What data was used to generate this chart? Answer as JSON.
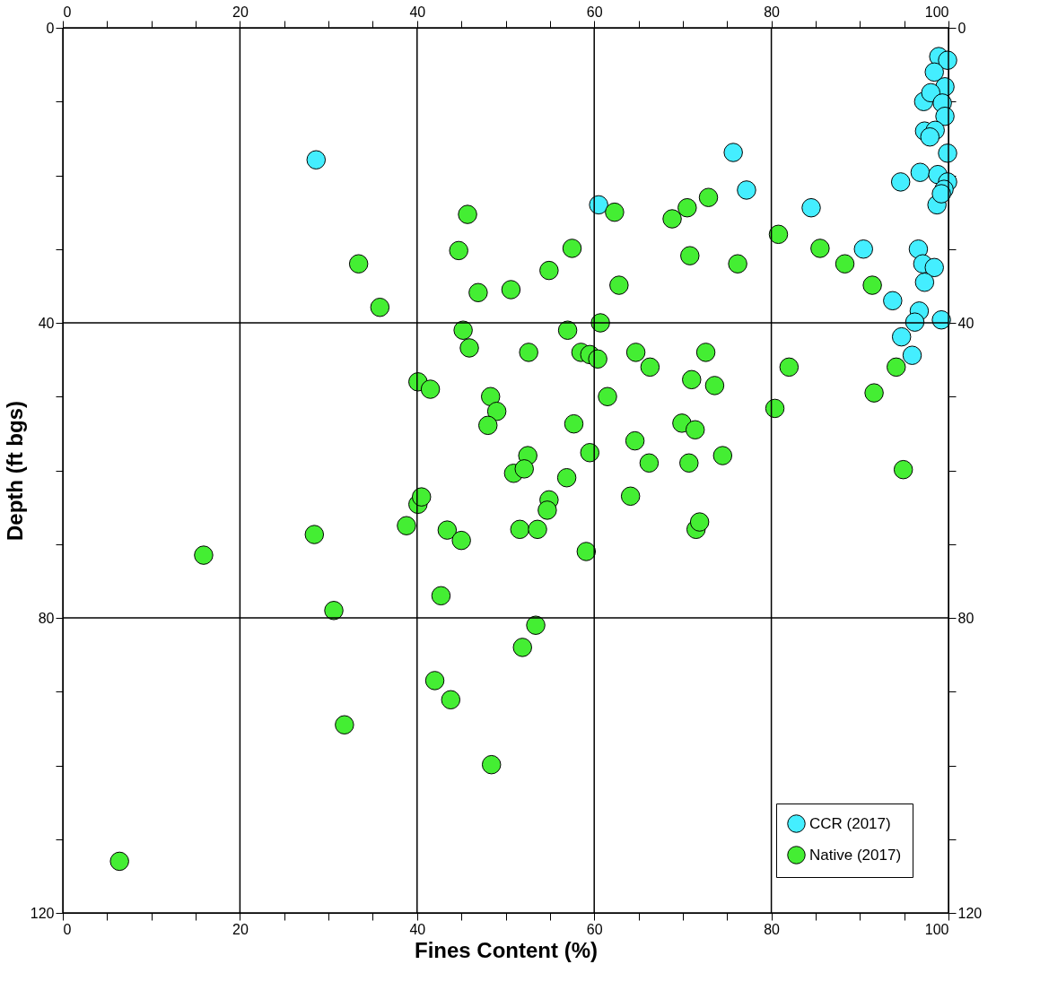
{
  "chart_data": {
    "type": "scatter",
    "xlabel": "Fines Content (%)",
    "ylabel": "Depth (ft bgs)",
    "xlim": [
      0,
      100
    ],
    "xticks": [
      0,
      {
        "value": 5,
        "label": null
      },
      {
        "value": 10,
        "label": null
      },
      {
        "value": 15,
        "label": null
      },
      20,
      {
        "value": 25,
        "label": null
      },
      {
        "value": 30,
        "label": null
      },
      {
        "value": 35,
        "label": null
      },
      40,
      {
        "value": 45,
        "label": null
      },
      {
        "value": 50,
        "label": null
      },
      {
        "value": 55,
        "label": null
      },
      60,
      {
        "value": 65,
        "label": null
      },
      {
        "value": 70,
        "label": null
      },
      {
        "value": 75,
        "label": null
      },
      80,
      {
        "value": 85,
        "label": null
      },
      {
        "value": 90,
        "label": null
      },
      {
        "value": 95,
        "label": null
      },
      100
    ],
    "x2lim": [
      0,
      100
    ],
    "x2ticks": [
      0,
      {
        "value": 5,
        "label": null
      },
      {
        "value": 10,
        "label": null
      },
      {
        "value": 15,
        "label": null
      },
      20,
      {
        "value": 25,
        "label": null
      },
      {
        "value": 30,
        "label": null
      },
      {
        "value": 35,
        "label": null
      },
      40,
      {
        "value": 45,
        "label": null
      },
      {
        "value": 50,
        "label": null
      },
      {
        "value": 55,
        "label": null
      },
      60,
      {
        "value": 65,
        "label": null
      },
      {
        "value": 70,
        "label": null
      },
      {
        "value": 75,
        "label": null
      },
      80,
      {
        "value": 85,
        "label": null
      },
      {
        "value": 90,
        "label": null
      },
      {
        "value": 95,
        "label": null
      },
      100
    ],
    "ylim": [
      120,
      0
    ],
    "yticks": [
      0,
      {
        "value": 10,
        "label": null
      },
      {
        "value": 20,
        "label": null
      },
      {
        "value": 30,
        "label": null
      },
      40,
      {
        "value": 50,
        "label": null
      },
      {
        "value": 60,
        "label": null
      },
      {
        "value": 70,
        "label": null
      },
      80,
      {
        "value": 90,
        "label": null
      },
      {
        "value": 100,
        "label": null
      },
      {
        "value": 110,
        "label": null
      },
      120
    ],
    "y2lim": [
      120,
      0
    ],
    "y2ticks": [
      0,
      {
        "value": 10,
        "label": null
      },
      {
        "value": 20,
        "label": null
      },
      {
        "value": 30,
        "label": null
      },
      40,
      {
        "value": 50,
        "label": null
      },
      {
        "value": 60,
        "label": null
      },
      {
        "value": 70,
        "label": null
      },
      80,
      {
        "value": 90,
        "label": null
      },
      {
        "value": 100,
        "label": null
      },
      {
        "value": 110,
        "label": null
      },
      120
    ],
    "grid": true,
    "legend": "bottom right",
    "marker": "circle",
    "series": [
      {
        "name": "CCR (2017)",
        "color": "#44eeff",
        "x": [
          98.9,
          99.9,
          98.4,
          99.6,
          97.2,
          98.0,
          99.3,
          99.6,
          97.3,
          98.5,
          97.9,
          99.9,
          96.8,
          98.8,
          94.6,
          99.9,
          99.5,
          98.7,
          99.2,
          28.6,
          75.7,
          77.2,
          60.5,
          84.5,
          90.4,
          96.6,
          97.1,
          98.4,
          97.3,
          93.7,
          96.7,
          96.2,
          99.2,
          94.7,
          95.9
        ],
        "values": [
          3.9,
          4.4,
          6.0,
          8.0,
          10.0,
          8.8,
          10.2,
          12.0,
          14.0,
          13.9,
          14.8,
          17.0,
          19.6,
          19.9,
          20.9,
          20.9,
          21.9,
          24.0,
          22.5,
          17.9,
          16.9,
          22.0,
          24.0,
          24.4,
          30.0,
          30.0,
          32.0,
          32.5,
          34.5,
          37.0,
          38.4,
          39.9,
          39.6,
          41.9,
          44.4
        ]
      },
      {
        "name": "Native (2017)",
        "color": "#44ee33",
        "x": [
          45.7,
          62.3,
          68.8,
          70.5,
          72.9,
          80.8,
          44.7,
          57.5,
          70.8,
          76.2,
          85.5,
          88.3,
          91.4,
          33.4,
          54.9,
          62.8,
          50.6,
          46.9,
          35.8,
          45.2,
          57.0,
          60.7,
          45.9,
          52.6,
          58.5,
          59.5,
          60.4,
          64.7,
          66.3,
          72.6,
          82.0,
          94.1,
          40.1,
          41.5,
          71.0,
          73.6,
          48.3,
          49.0,
          48.0,
          61.5,
          57.7,
          69.9,
          71.4,
          80.4,
          91.6,
          64.6,
          52.5,
          59.5,
          66.2,
          70.7,
          74.5,
          94.9,
          50.9,
          52.1,
          56.9,
          54.9,
          54.7,
          64.1,
          40.1,
          40.5,
          38.8,
          43.4,
          45.0,
          51.6,
          53.6,
          59.1,
          71.5,
          71.9,
          28.4,
          15.9,
          30.6,
          42.7,
          53.4,
          51.9,
          42.0,
          43.8,
          31.8,
          48.4,
          6.4
        ],
        "values": [
          25.3,
          25.0,
          25.9,
          24.4,
          23.0,
          28.0,
          30.2,
          29.9,
          30.9,
          32.0,
          29.9,
          32.0,
          34.9,
          32.0,
          32.9,
          34.9,
          35.5,
          35.9,
          37.9,
          41.0,
          41.0,
          40.0,
          43.4,
          44.0,
          44.0,
          44.3,
          44.9,
          44.0,
          46.0,
          44.0,
          46.0,
          46.0,
          48.0,
          49.0,
          47.7,
          48.5,
          50.0,
          52.0,
          53.9,
          50.0,
          53.7,
          53.6,
          54.5,
          51.6,
          49.5,
          56.0,
          58.0,
          57.6,
          59.0,
          59.0,
          58.0,
          59.9,
          60.4,
          59.8,
          61.0,
          64.0,
          65.4,
          63.5,
          64.6,
          63.6,
          67.5,
          68.1,
          69.5,
          68.0,
          68.0,
          71.0,
          68.0,
          67.0,
          68.7,
          71.5,
          79.0,
          77.0,
          81.0,
          84.0,
          88.5,
          91.1,
          94.5,
          99.9,
          113.0
        ]
      }
    ]
  }
}
